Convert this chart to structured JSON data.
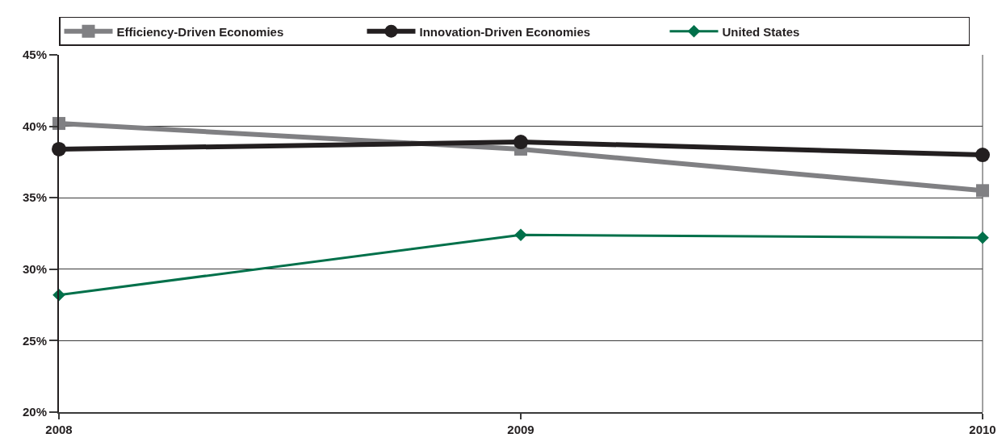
{
  "chart_data": {
    "type": "line",
    "x": [
      2008,
      2009,
      2010
    ],
    "xlim": [
      2008,
      2010
    ],
    "xticks": [
      2008,
      2009,
      2010
    ],
    "ylim": [
      20,
      45
    ],
    "yticks": [
      {
        "value": 20,
        "label": "20%"
      },
      {
        "value": 25,
        "label": "25%"
      },
      {
        "value": 30,
        "label": "30%"
      },
      {
        "value": 35,
        "label": "35%"
      },
      {
        "value": 40,
        "label": "40%"
      },
      {
        "value": 45,
        "label": "45%"
      }
    ],
    "grid": "y",
    "legend": "top",
    "line_style": "solid",
    "series": [
      {
        "name": "Efficiency-Driven Economies",
        "color": "#808083",
        "marker": "square",
        "values": [
          40.2,
          38.4,
          35.5
        ]
      },
      {
        "name": "Innovation-Driven Economies",
        "color": "#231f20",
        "marker": "circle",
        "values": [
          38.4,
          38.9,
          38.0
        ]
      },
      {
        "name": "United States",
        "color": "#00704a",
        "marker": "diamond",
        "values": [
          28.2,
          32.4,
          32.2
        ]
      }
    ]
  }
}
